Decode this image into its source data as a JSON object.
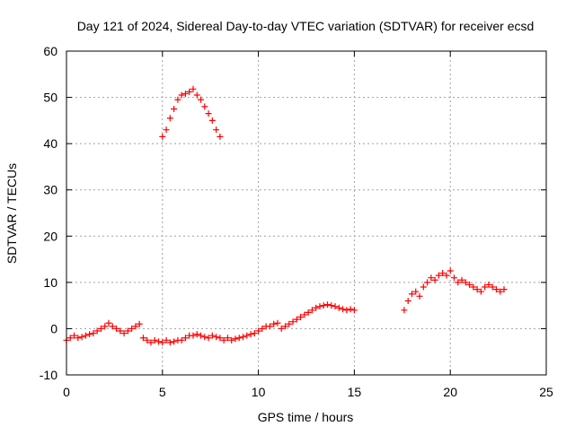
{
  "chart_data": {
    "type": "scatter",
    "title": "Day 121 of 2024, Sidereal Day-to-day VTEC variation (SDTVAR) for receiver ecsd",
    "xlabel": "GPS time / hours",
    "ylabel": "SDTVAR / TECUs",
    "xlim": [
      0,
      25
    ],
    "ylim": [
      -10,
      60
    ],
    "xticks": [
      0,
      5,
      10,
      15,
      20,
      25
    ],
    "yticks": [
      -10,
      0,
      10,
      20,
      30,
      40,
      50,
      60
    ],
    "xtick_labels": [
      "0",
      "5",
      "10",
      "15",
      "20",
      "25"
    ],
    "ytick_labels": [
      "-10",
      "0",
      "10",
      "20",
      "30",
      "40",
      "50",
      "60"
    ],
    "grid": true,
    "marker": "+",
    "color": "#ff0000",
    "series": [
      {
        "name": "main",
        "x": [
          0.0,
          0.2,
          0.4,
          0.6,
          0.8,
          1.0,
          1.2,
          1.4,
          1.6,
          1.8,
          2.0,
          2.2,
          2.4,
          2.6,
          2.8,
          3.0,
          3.2,
          3.4,
          3.6,
          3.8,
          4.0,
          4.2,
          4.4,
          4.6,
          4.8,
          5.0,
          5.2,
          5.4,
          5.6,
          5.8,
          6.0,
          6.2,
          6.4,
          6.6,
          6.8,
          7.0,
          7.2,
          7.4,
          7.6,
          7.8,
          8.0,
          8.2,
          8.4,
          8.6,
          8.8,
          9.0,
          9.2,
          9.4,
          9.6,
          9.8,
          10.0,
          10.2,
          10.4,
          10.6,
          10.8,
          11.0,
          11.2,
          11.4,
          11.6,
          11.8,
          12.0,
          12.2,
          12.4,
          12.6,
          12.8,
          13.0,
          13.2,
          13.4,
          13.6,
          13.8,
          14.0,
          14.2,
          14.4,
          14.6,
          14.8,
          15.0
        ],
        "y": [
          -2.5,
          -2.0,
          -1.5,
          -2.0,
          -1.8,
          -1.5,
          -1.2,
          -1.0,
          -0.5,
          0.0,
          0.5,
          1.2,
          0.5,
          0.0,
          -0.5,
          -1.0,
          -0.5,
          0.0,
          0.5,
          1.0,
          -2.0,
          -2.5,
          -3.0,
          -2.5,
          -2.8,
          -3.0,
          -2.5,
          -3.0,
          -2.8,
          -2.5,
          -2.5,
          -2.0,
          -1.5,
          -1.5,
          -1.2,
          -1.5,
          -1.8,
          -2.0,
          -1.5,
          -1.8,
          -2.0,
          -2.5,
          -2.0,
          -2.5,
          -2.2,
          -2.0,
          -1.8,
          -1.5,
          -1.2,
          -1.0,
          -0.5,
          0.0,
          0.5,
          0.5,
          1.0,
          1.2,
          0.0,
          0.5,
          1.0,
          1.5,
          2.0,
          2.5,
          3.0,
          3.5,
          4.0,
          4.5,
          4.8,
          5.0,
          5.2,
          5.0,
          4.8,
          4.5,
          4.2,
          4.0,
          4.2,
          4.0
        ]
      },
      {
        "name": "peak",
        "x": [
          5.0,
          5.2,
          5.4,
          5.6,
          5.8,
          6.0,
          6.2,
          6.4,
          6.6,
          6.8,
          7.0,
          7.2,
          7.4,
          7.6,
          7.8,
          8.0
        ],
        "y": [
          41.5,
          43.0,
          45.5,
          47.5,
          49.5,
          50.5,
          50.8,
          51.2,
          51.8,
          50.5,
          49.5,
          48.0,
          46.5,
          45.0,
          43.0,
          41.5
        ]
      },
      {
        "name": "late",
        "x": [
          17.6,
          17.8,
          18.0,
          18.2,
          18.4,
          18.6,
          18.8,
          19.0,
          19.2,
          19.4,
          19.6,
          19.8,
          20.0,
          20.2,
          20.4,
          20.6,
          20.8,
          21.0,
          21.2,
          21.4,
          21.6,
          21.8,
          22.0,
          22.2,
          22.4,
          22.6,
          22.8
        ],
        "y": [
          4.0,
          6.0,
          7.5,
          8.0,
          7.0,
          9.0,
          10.0,
          11.0,
          10.5,
          11.5,
          12.0,
          11.5,
          12.5,
          11.0,
          10.0,
          10.5,
          10.0,
          9.5,
          9.0,
          8.5,
          8.0,
          9.0,
          9.5,
          9.0,
          8.5,
          8.0,
          8.5
        ]
      }
    ]
  }
}
